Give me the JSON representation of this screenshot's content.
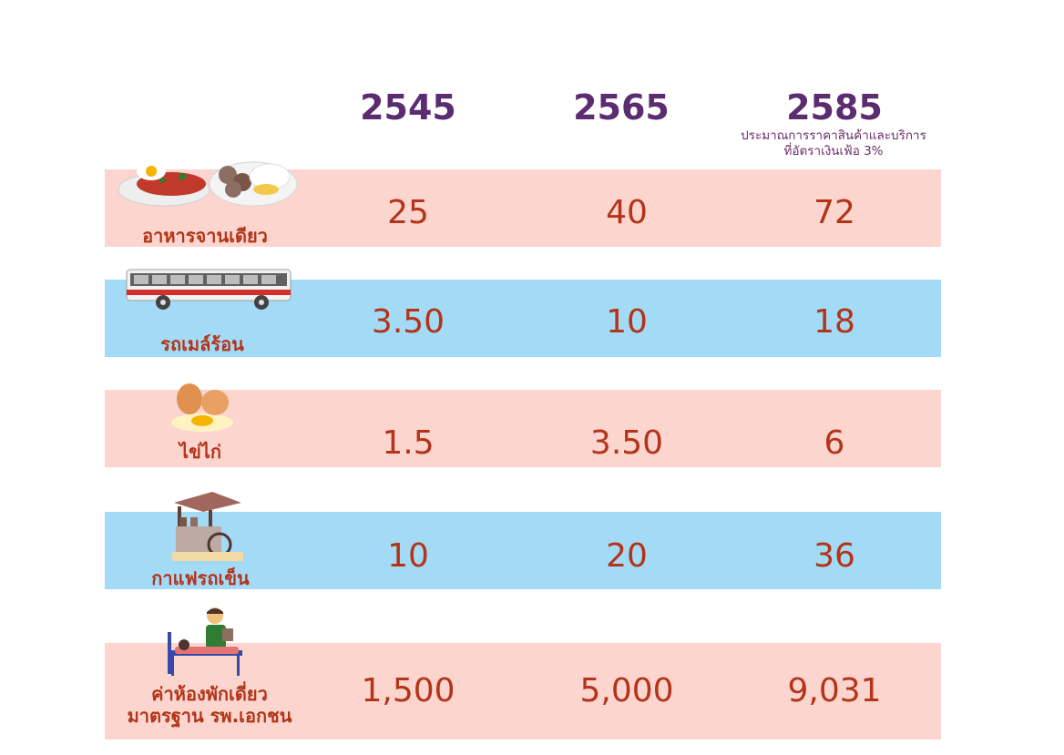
{
  "chart_data": {
    "type": "table",
    "colors": {
      "year": "#5b2c6f",
      "value": "#b33418",
      "pink": "#fcd5cf",
      "blue": "#a3dbf7"
    },
    "columns": [
      "2545",
      "2565",
      "2585"
    ],
    "column_note": "ประมาณการราคาสินค้าและบริการ\nที่อัตราเงินเฟ้อ  3%",
    "rows": [
      {
        "label": "อาหารจานเดียว",
        "values": [
          "25",
          "40",
          "72"
        ],
        "color": "pink",
        "icon": "rice-plate-icon"
      },
      {
        "label": "รถเมล์ร้อน",
        "values": [
          "3.50",
          "10",
          "18"
        ],
        "color": "blue",
        "icon": "bus-icon"
      },
      {
        "label": "ไข่ไก่",
        "values": [
          "1.5",
          "3.50",
          "6"
        ],
        "color": "pink",
        "icon": "eggs-icon"
      },
      {
        "label": "กาแฟรถเข็น",
        "values": [
          "10",
          "20",
          "36"
        ],
        "color": "blue",
        "icon": "coffee-cart-icon"
      },
      {
        "label": "ค่าห้องพักเดี่ยว\nมาตรฐาน รพ.เอกชน",
        "values": [
          "1,500",
          "5,000",
          "9,031"
        ],
        "color": "pink",
        "icon": "hospital-bed-icon"
      }
    ]
  }
}
